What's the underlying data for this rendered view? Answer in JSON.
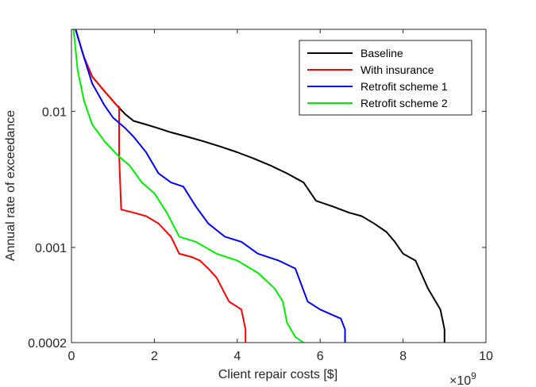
{
  "chart_data": {
    "type": "line",
    "title": "",
    "xlabel": "Client repair costs [$]",
    "ylabel": "Annual rate of exceedance",
    "x_exponent_label": "×10",
    "x_exponent": "9",
    "x_scale": 1000000000,
    "xlim": [
      0,
      10
    ],
    "ylim": [
      0.0002,
      0.04
    ],
    "yscale": "log",
    "x_ticks": [
      0,
      2,
      4,
      6,
      8,
      10
    ],
    "x_tick_labels": [
      "0",
      "2",
      "4",
      "6",
      "8",
      "10"
    ],
    "y_ticks": [
      0.0002,
      0.001,
      0.01
    ],
    "y_tick_labels": [
      "0.0002",
      "0.001",
      "0.01"
    ],
    "grid": false,
    "legend_position": "top-right",
    "series": [
      {
        "name": "Baseline",
        "color": "#000000",
        "x": [
          0.1,
          0.3,
          0.5,
          0.8,
          1.1,
          1.3,
          1.5,
          1.8,
          2.1,
          2.4,
          2.8,
          3.2,
          3.6,
          4.0,
          4.4,
          4.8,
          5.2,
          5.6,
          5.9,
          6.3,
          6.7,
          7.0,
          7.3,
          7.6,
          7.8,
          8.0,
          8.3,
          8.6,
          8.9,
          9.0,
          9.0
        ],
        "y": [
          0.04,
          0.025,
          0.018,
          0.014,
          0.011,
          0.0095,
          0.0085,
          0.008,
          0.0075,
          0.007,
          0.0065,
          0.006,
          0.0055,
          0.005,
          0.0045,
          0.004,
          0.0035,
          0.003,
          0.0022,
          0.002,
          0.0018,
          0.0017,
          0.0015,
          0.0013,
          0.0011,
          0.0009,
          0.0008,
          0.0005,
          0.00035,
          0.00025,
          0.0002
        ]
      },
      {
        "name": "With insurance",
        "color": "#ff0000",
        "x": [
          0.1,
          0.3,
          0.5,
          0.8,
          1.1,
          1.15,
          1.15,
          1.2,
          1.5,
          1.8,
          2.1,
          2.4,
          2.6,
          2.9,
          3.1,
          3.3,
          3.5,
          3.8,
          4.1,
          4.2,
          4.2
        ],
        "y": [
          0.04,
          0.025,
          0.018,
          0.014,
          0.011,
          0.0108,
          0.0048,
          0.0019,
          0.0018,
          0.0017,
          0.0015,
          0.0012,
          0.0009,
          0.00085,
          0.0008,
          0.0007,
          0.0006,
          0.0004,
          0.00035,
          0.00025,
          0.0002
        ]
      },
      {
        "name": "Retrofit scheme 1",
        "color": "#0000ff",
        "x": [
          0.1,
          0.3,
          0.5,
          0.8,
          1.0,
          1.3,
          1.5,
          1.8,
          2.1,
          2.4,
          2.7,
          3.0,
          3.3,
          3.7,
          4.1,
          4.5,
          5.0,
          5.4,
          5.7,
          6.0,
          6.5,
          6.6,
          6.6
        ],
        "y": [
          0.04,
          0.025,
          0.016,
          0.011,
          0.009,
          0.0075,
          0.0065,
          0.005,
          0.0035,
          0.003,
          0.0028,
          0.002,
          0.0015,
          0.0012,
          0.0011,
          0.0009,
          0.0008,
          0.0007,
          0.0004,
          0.00035,
          0.0003,
          0.00025,
          0.0002
        ]
      },
      {
        "name": "Retrofit scheme 2",
        "color": "#00ee00",
        "x": [
          0.05,
          0.15,
          0.3,
          0.5,
          0.8,
          1.1,
          1.4,
          1.7,
          2.0,
          2.3,
          2.6,
          3.0,
          3.5,
          4.0,
          4.5,
          4.9,
          5.1,
          5.2,
          5.4,
          5.6,
          5.6
        ],
        "y": [
          0.04,
          0.02,
          0.012,
          0.008,
          0.006,
          0.0048,
          0.004,
          0.003,
          0.0025,
          0.0018,
          0.0012,
          0.0011,
          0.0009,
          0.0008,
          0.00065,
          0.0005,
          0.0004,
          0.00028,
          0.00022,
          0.0002,
          0.0002
        ]
      }
    ]
  }
}
